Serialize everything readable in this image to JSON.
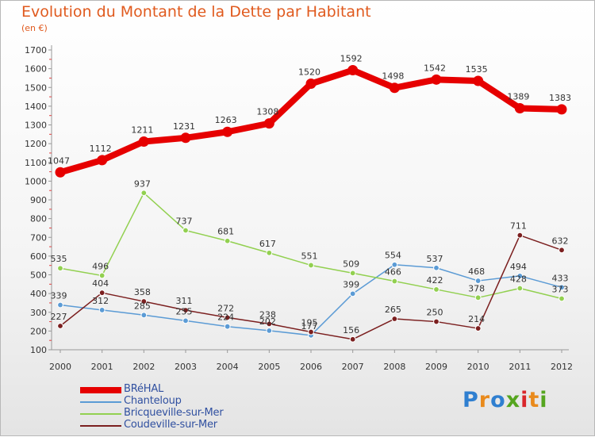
{
  "title": "Evolution du Montant de la Dette par Habitant",
  "unit": "(en €)",
  "brand": {
    "text": "Proxiti",
    "letter_colors": [
      "#2f7fd0",
      "#e98a1c",
      "#2f7fd0",
      "#55a51f",
      "#d9262b",
      "#e98a1c",
      "#55a51f"
    ]
  },
  "chart_data": {
    "type": "line",
    "x": [
      "2000",
      "2001",
      "2002",
      "2003",
      "2004",
      "2005",
      "2006",
      "2007",
      "2008",
      "2009",
      "2010",
      "2011",
      "2012"
    ],
    "ylim": [
      100,
      1700
    ],
    "yticks": [
      100,
      200,
      300,
      400,
      500,
      600,
      700,
      800,
      900,
      1000,
      1100,
      1200,
      1300,
      1400,
      1500,
      1600,
      1700
    ],
    "grid": false,
    "legend": "bottom-left",
    "series": [
      {
        "name": "BRéHAL",
        "color": "#e60000",
        "values": [
          1047,
          1112,
          1211,
          1231,
          1263,
          1308,
          1520,
          1592,
          1498,
          1542,
          1535,
          1389,
          1383
        ]
      },
      {
        "name": "Chanteloup",
        "color": "#5b9bd5",
        "values": [
          339,
          312,
          285,
          255,
          224,
          202,
          177,
          399,
          554,
          537,
          468,
          494,
          433
        ]
      },
      {
        "name": "Bricqueville-sur-Mer",
        "color": "#92d050",
        "values": [
          535,
          496,
          937,
          737,
          681,
          617,
          551,
          509,
          466,
          422,
          378,
          428,
          373
        ]
      },
      {
        "name": "Coudeville-sur-Mer",
        "color": "#7b1f1f",
        "values": [
          227,
          404,
          358,
          311,
          272,
          238,
          195,
          156,
          265,
          250,
          214,
          711,
          632
        ]
      }
    ]
  }
}
